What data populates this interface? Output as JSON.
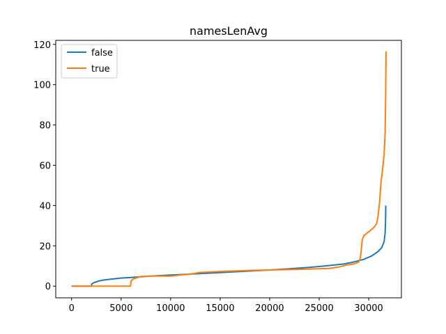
{
  "chart_data": {
    "type": "line",
    "title": "namesLenAvg",
    "xlabel": "",
    "ylabel": "",
    "xlim": [
      -1600,
      33300
    ],
    "ylim": [
      -5.8,
      122
    ],
    "xticks": [
      0,
      5000,
      10000,
      15000,
      20000,
      25000,
      30000
    ],
    "yticks": [
      0,
      20,
      40,
      60,
      80,
      100,
      120
    ],
    "grid": false,
    "legend_position": "top-left",
    "series": [
      {
        "name": "false",
        "color": "#1f77b4",
        "points": [
          [
            0,
            0
          ],
          [
            2000,
            0
          ],
          [
            2050,
            1.2
          ],
          [
            2300,
            1.8
          ],
          [
            2700,
            2.5
          ],
          [
            3200,
            3.0
          ],
          [
            4000,
            3.5
          ],
          [
            5000,
            4.0
          ],
          [
            6000,
            4.3
          ],
          [
            8000,
            5.0
          ],
          [
            10000,
            5.5
          ],
          [
            12000,
            6.0
          ],
          [
            15000,
            6.7
          ],
          [
            18000,
            7.5
          ],
          [
            20000,
            8.0
          ],
          [
            22000,
            8.6
          ],
          [
            24000,
            9.3
          ],
          [
            26000,
            10.2
          ],
          [
            27500,
            11.0
          ],
          [
            28500,
            12.0
          ],
          [
            29500,
            13.3
          ],
          [
            30300,
            15.0
          ],
          [
            30900,
            17.0
          ],
          [
            31300,
            19.0
          ],
          [
            31550,
            22.0
          ],
          [
            31650,
            26.0
          ],
          [
            31700,
            32.0
          ],
          [
            31720,
            40.0
          ]
        ]
      },
      {
        "name": "true",
        "color": "#ff7f0e",
        "points": [
          [
            0,
            0
          ],
          [
            5950,
            0
          ],
          [
            6000,
            2.5
          ],
          [
            6200,
            3.5
          ],
          [
            6500,
            4.0
          ],
          [
            7000,
            4.8
          ],
          [
            8000,
            5.0
          ],
          [
            10000,
            5.0
          ],
          [
            12000,
            6.0
          ],
          [
            13000,
            6.8
          ],
          [
            15000,
            7.3
          ],
          [
            18000,
            7.8
          ],
          [
            20000,
            8.0
          ],
          [
            23000,
            8.3
          ],
          [
            26000,
            8.8
          ],
          [
            27000,
            9.5
          ],
          [
            27800,
            10.5
          ],
          [
            28500,
            11.0
          ],
          [
            29000,
            12.0
          ],
          [
            29150,
            14.0
          ],
          [
            29250,
            18.0
          ],
          [
            29350,
            23.0
          ],
          [
            29500,
            25.0
          ],
          [
            30000,
            27.0
          ],
          [
            30500,
            29.0
          ],
          [
            30800,
            31.0
          ],
          [
            30950,
            35.0
          ],
          [
            31100,
            42.0
          ],
          [
            31250,
            52.0
          ],
          [
            31400,
            58.0
          ],
          [
            31550,
            65.0
          ],
          [
            31650,
            75.0
          ],
          [
            31700,
            90.0
          ],
          [
            31750,
            116.5
          ]
        ]
      }
    ]
  }
}
